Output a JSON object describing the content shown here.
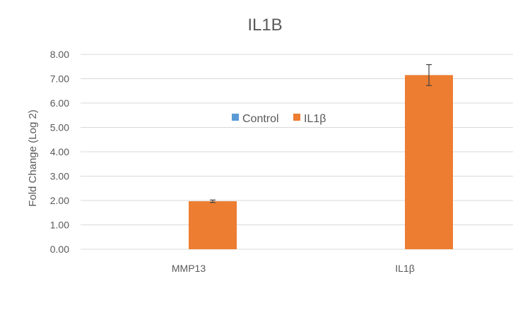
{
  "chart_data": {
    "type": "bar",
    "title": "IL1B",
    "xlabel": "",
    "ylabel": "Fold Change (Log 2)",
    "ylim": [
      0,
      8
    ],
    "y_ticks": [
      "0.00",
      "1.00",
      "2.00",
      "3.00",
      "4.00",
      "5.00",
      "6.00",
      "7.00",
      "8.00"
    ],
    "categories": [
      "MMP13",
      "IL1β"
    ],
    "series": [
      {
        "name": "Control",
        "color": "#5b9bd5",
        "values": [
          0,
          0
        ],
        "error": [
          0,
          0
        ]
      },
      {
        "name": "IL1β",
        "color": "#ed7d31",
        "values": [
          1.97,
          7.15
        ],
        "error": [
          0.05,
          0.43
        ]
      }
    ],
    "grid": true,
    "legend_position": "center"
  }
}
